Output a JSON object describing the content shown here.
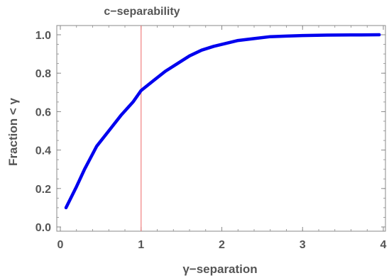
{
  "chart_data": {
    "type": "line",
    "title": "c−separability",
    "xlabel": "γ−separation",
    "ylabel": "Fraction < γ",
    "xlim": [
      0,
      4
    ],
    "ylim": [
      0,
      1.05
    ],
    "x_ticks": [
      "0",
      "1",
      "2",
      "3",
      "4"
    ],
    "y_ticks": [
      "0.0",
      "0.2",
      "0.4",
      "0.6",
      "0.8",
      "1.0"
    ],
    "grid": false,
    "reference_line": {
      "x": 1,
      "color": "#f08080"
    },
    "series": [
      {
        "color": "#0000ee",
        "x": [
          0.07,
          0.2,
          0.3,
          0.45,
          0.6,
          0.75,
          0.9,
          1.0,
          1.15,
          1.3,
          1.45,
          1.6,
          1.75,
          1.9,
          2.05,
          2.2,
          2.4,
          2.6,
          2.8,
          3.0,
          3.3,
          3.6,
          3.95
        ],
        "y": [
          0.1,
          0.21,
          0.3,
          0.42,
          0.5,
          0.58,
          0.65,
          0.71,
          0.76,
          0.81,
          0.85,
          0.89,
          0.92,
          0.94,
          0.955,
          0.97,
          0.98,
          0.99,
          0.993,
          0.996,
          0.998,
          0.999,
          1.0
        ]
      }
    ]
  }
}
